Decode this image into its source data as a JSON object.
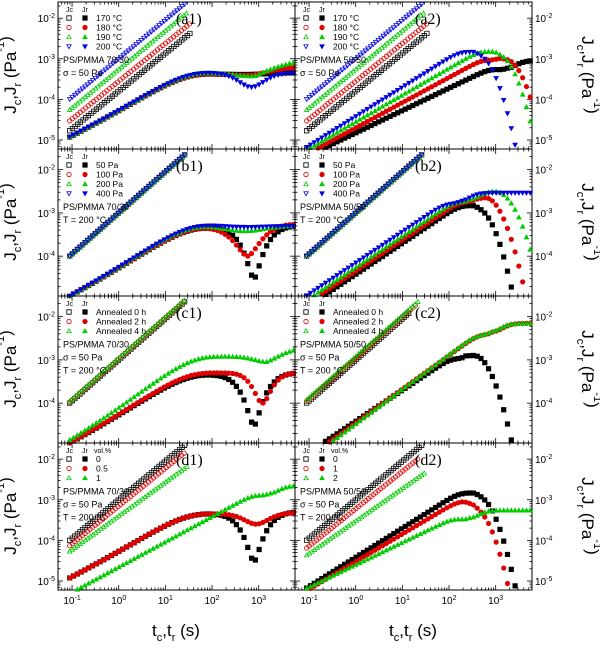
{
  "figure": {
    "y_axis_label": "J_c,J_r (Pa^-1)",
    "x_axis_label": "t_c,t_r (s)"
  },
  "chart_data": [
    {
      "type": "scatter",
      "panel": "(a1)",
      "xscale": "log",
      "yscale": "log",
      "xlim": [
        0.05,
        6000
      ],
      "ylim": [
        6e-06,
        0.025
      ],
      "annotation": [
        "PS/PMMA 70/30",
        "σ = 50 Pa"
      ],
      "legend_headers": [
        "J_c",
        "J_r"
      ],
      "series": [
        {
          "name": "170 °C",
          "color": "#000000",
          "marker": "square",
          "jc": {
            "a": 0.00016,
            "b": 0.93,
            "cap": 0.0042
          },
          "jr": {
            "s": 0.00042,
            "d": 1e-05,
            "tm": 600,
            "w": 0.6,
            "tail": 0.00045
          }
        },
        {
          "name": "180 °C",
          "color": "#e00000",
          "marker": "circle",
          "jc": {
            "a": 0.00028,
            "b": 0.93,
            "cap": 0.0072
          },
          "jr": {
            "s": 0.00042,
            "d": 3e-05,
            "tm": 700,
            "w": 0.6,
            "tail": 0.0006
          }
        },
        {
          "name": "190 °C",
          "color": "#00cc00",
          "marker": "triangle",
          "jc": {
            "a": 0.00055,
            "b": 0.95,
            "cap": 0.0132
          },
          "jr": {
            "s": 0.00045,
            "d": 8e-05,
            "tm": 800,
            "w": 0.6,
            "tail": 0.0008
          }
        },
        {
          "name": "200 °C",
          "color": "#0000e0",
          "marker": "tridown",
          "jc": {
            "a": 0.001,
            "b": 0.95,
            "cap": 0.022
          },
          "jr": {
            "s": 0.00045,
            "d": 0.00025,
            "tm": 700,
            "w": 0.45,
            "tail": 0.00045
          }
        }
      ]
    },
    {
      "type": "scatter",
      "panel": "(a2)",
      "xscale": "log",
      "yscale": "log",
      "xlim": [
        0.05,
        6000
      ],
      "ylim": [
        6e-06,
        0.025
      ],
      "annotation": [
        "PS/PMMA 50/50",
        "σ = 50 Pa"
      ],
      "legend_headers": [
        "J_c",
        "J_r"
      ],
      "series": [
        {
          "name": "170 °C",
          "color": "#000000",
          "marker": "square",
          "jc": {
            "a": 0.00016,
            "b": 0.93,
            "cap": 0.0042
          },
          "jr": {
            "a": 1.5e-05,
            "b": 0.55,
            "cap": 0.0009,
            "rise": 1.0,
            "drop": 0
          }
        },
        {
          "name": "180 °C",
          "color": "#e00000",
          "marker": "circle",
          "jc": {
            "a": 0.00028,
            "b": 0.93,
            "cap": 0.0072
          },
          "jr": {
            "a": 2e-05,
            "b": 0.62,
            "cap": 0.0016,
            "rise": 1.0,
            "drop": 4000
          }
        },
        {
          "name": "190 °C",
          "color": "#00cc00",
          "marker": "triangle",
          "jc": {
            "a": 0.00055,
            "b": 0.95,
            "cap": 0.0132
          },
          "jr": {
            "a": 2.8e-05,
            "b": 0.66,
            "cap": 0.0026,
            "rise": 1.0,
            "drop": 2500
          }
        },
        {
          "name": "200 °C",
          "color": "#0000e0",
          "marker": "tridown",
          "jc": {
            "a": 0.001,
            "b": 0.95,
            "cap": 0.022
          },
          "jr": {
            "a": 3.8e-05,
            "b": 0.72,
            "cap": 0.0026,
            "rise": 1.0,
            "drop": 900
          }
        }
      ]
    },
    {
      "type": "scatter",
      "panel": "(b1)",
      "xscale": "log",
      "yscale": "log",
      "xlim": [
        0.05,
        6000
      ],
      "ylim": [
        1.2e-05,
        0.03
      ],
      "annotation": [
        "PS/PMMA 70/30",
        "T = 200 °C"
      ],
      "legend_headers": [
        "J_c",
        "J_r"
      ],
      "series": [
        {
          "name": "50 Pa",
          "color": "#000000",
          "marker": "square",
          "jc": {
            "a": 0.001,
            "b": 0.95,
            "cap": 0.022
          },
          "jr": {
            "s": 0.00045,
            "d": 0.00042,
            "tm": 800,
            "w": 0.45,
            "tail": 0.0005
          }
        },
        {
          "name": "100 Pa",
          "color": "#e00000",
          "marker": "circle",
          "jc": {
            "a": 0.001,
            "b": 0.95,
            "cap": 0.022
          },
          "jr": {
            "s": 0.00045,
            "d": 0.00035,
            "tm": 600,
            "w": 0.5,
            "tail": 0.00055
          }
        },
        {
          "name": "200 Pa",
          "color": "#00cc00",
          "marker": "triangle",
          "jc": {
            "a": 0.001,
            "b": 0.95,
            "cap": 0.022
          },
          "jr": {
            "s": 0.0005,
            "d": 0.00012,
            "tm": 500,
            "w": 0.6,
            "tail": 0.0005
          }
        },
        {
          "name": "400 Pa",
          "color": "#0000e0",
          "marker": "tridown",
          "jc": {
            "a": 0.001,
            "b": 0.95,
            "cap": 0.022
          },
          "jr": {
            "s": 0.00052,
            "d": 5e-05,
            "tm": 500,
            "w": 0.6,
            "tail": 0.0005
          }
        }
      ]
    },
    {
      "type": "scatter",
      "panel": "(b2)",
      "xscale": "log",
      "yscale": "log",
      "xlim": [
        0.05,
        6000
      ],
      "ylim": [
        1.2e-05,
        0.03
      ],
      "annotation": [
        "PS/PMMA 50/50",
        "T = 200 °C"
      ],
      "legend_headers": [
        "J_c",
        "J_r"
      ],
      "series": [
        {
          "name": "50 Pa",
          "color": "#000000",
          "marker": "square",
          "jc": {
            "a": 0.001,
            "b": 0.95,
            "cap": 0.022
          },
          "jr": {
            "a": 3.8e-05,
            "b": 0.72,
            "cap": 0.0026,
            "rise": 1.0,
            "drop": 900
          }
        },
        {
          "name": "100 Pa",
          "color": "#e00000",
          "marker": "circle",
          "jc": {
            "a": 0.001,
            "b": 0.95,
            "cap": 0.022
          },
          "jr": {
            "a": 4.5e-05,
            "b": 0.72,
            "cap": 0.0032,
            "rise": 1.0,
            "drop": 1600
          }
        },
        {
          "name": "200 Pa",
          "color": "#00cc00",
          "marker": "triangle",
          "jc": {
            "a": 0.001,
            "b": 0.95,
            "cap": 0.022
          },
          "jr": {
            "a": 5.5e-05,
            "b": 0.72,
            "cap": 0.0032,
            "rise": 1.0,
            "drop": 3500
          }
        },
        {
          "name": "400 Pa",
          "color": "#0000e0",
          "marker": "tridown",
          "jc": {
            "a": 0.001,
            "b": 0.95,
            "cap": 0.022
          },
          "jr": {
            "a": 7e-05,
            "b": 0.72,
            "cap": 0.0029,
            "rise": 1.0,
            "drop": 0
          }
        }
      ]
    },
    {
      "type": "scatter",
      "panel": "(c1)",
      "xscale": "log",
      "yscale": "log",
      "xlim": [
        0.05,
        6000
      ],
      "ylim": [
        1.2e-05,
        0.03
      ],
      "annotation": [
        "PS/PMMA 70/30",
        "σ = 50 Pa",
        "T = 200 °C"
      ],
      "legend_headers": [
        "J_c",
        "J_r"
      ],
      "series": [
        {
          "name": "Annealed 0 h",
          "color": "#000000",
          "marker": "square",
          "jc": {
            "a": 0.001,
            "b": 0.95,
            "cap": 0.022
          },
          "jr": {
            "s": 0.00045,
            "d": 0.00042,
            "tm": 800,
            "w": 0.45,
            "tail": 0.0005
          }
        },
        {
          "name": "Annealed 2 h",
          "color": "#e00000",
          "marker": "circle",
          "jc": {
            "a": 0.00105,
            "b": 0.95,
            "cap": 0.022
          },
          "jr": {
            "s": 0.0005,
            "d": 0.0004,
            "tm": 1200,
            "w": 0.35,
            "tail": 0.0005
          }
        },
        {
          "name": "Annealed 4 h",
          "color": "#00cc00",
          "marker": "triangle",
          "jc": {
            "a": 0.0011,
            "b": 0.95,
            "cap": 0.024
          },
          "jr": {
            "s": 0.0012,
            "d": 0.0003,
            "tm": 1500,
            "w": 0.4,
            "tail": 0.0019
          }
        }
      ]
    },
    {
      "type": "scatter",
      "panel": "(c2)",
      "xscale": "log",
      "yscale": "log",
      "xlim": [
        0.05,
        6000
      ],
      "ylim": [
        1.2e-05,
        0.03
      ],
      "annotation": [
        "PS/PMMA 50/50",
        "σ = 50 Pa",
        "T = 200 °C"
      ],
      "legend_headers": [
        "J_c",
        "J_r"
      ],
      "series": [
        {
          "name": "Annealed 0 h",
          "color": "#000000",
          "marker": "square",
          "jc": {
            "a": 0.001,
            "b": 0.95,
            "cap": 0.012
          },
          "jr": {
            "a": 3.8e-05,
            "b": 0.72,
            "cap": 0.0019,
            "rise": 1.0,
            "drop": 900
          }
        },
        {
          "name": "Annealed 2 h",
          "color": "#e00000",
          "marker": "circle",
          "jc": {
            "a": 0.0011,
            "b": 0.95,
            "cap": 0.018
          },
          "jr": {
            "a": 3.5e-05,
            "b": 0.78,
            "cap": 0.007,
            "rise": 1.0,
            "drop": 0
          }
        },
        {
          "name": "Annealed 4 h",
          "color": "#00cc00",
          "marker": "triangle",
          "jc": {
            "a": 0.0012,
            "b": 0.95,
            "cap": 0.022
          },
          "jr": {
            "a": 3.3e-05,
            "b": 0.8,
            "cap": 0.007,
            "rise": 1.0,
            "drop": 0
          }
        }
      ]
    },
    {
      "type": "scatter",
      "panel": "(d1)",
      "xscale": "log",
      "yscale": "log",
      "xlim": [
        0.05,
        6000
      ],
      "ylim": [
        6e-06,
        0.025
      ],
      "annotation": [
        "PS/PMMA 70/30",
        "σ = 50 Pa",
        "T = 200 °C"
      ],
      "legend_headers": [
        "J_c",
        "J_r",
        "vol.%"
      ],
      "series": [
        {
          "name": "0",
          "color": "#000000",
          "marker": "square",
          "jc": {
            "a": 0.001,
            "b": 0.95,
            "cap": 0.022
          },
          "jr": {
            "s": 0.00045,
            "d": 0.00042,
            "tm": 800,
            "w": 0.45,
            "tail": 0.0005
          }
        },
        {
          "name": "0.5",
          "color": "#e00000",
          "marker": "circle",
          "jc": {
            "a": 0.0007,
            "b": 0.93,
            "cap": 0.014
          },
          "jr": {
            "s": 0.00045,
            "d": 0.0002,
            "tm": 900,
            "w": 0.4,
            "tail": 0.00048
          }
        },
        {
          "name": "1",
          "color": "#00cc00",
          "marker": "triangle",
          "jc": {
            "a": 0.0004,
            "b": 0.83,
            "cap": 0.0065
          },
          "jr": {
            "a": 2.2e-05,
            "b": 0.62,
            "cap": 0.0022,
            "rise": 1.0,
            "drop": 0
          }
        }
      ]
    },
    {
      "type": "scatter",
      "panel": "(d2)",
      "xscale": "log",
      "yscale": "log",
      "xlim": [
        0.05,
        6000
      ],
      "ylim": [
        6e-06,
        0.025
      ],
      "annotation": [
        "PS/PMMA 50/50",
        "σ = 50 Pa",
        "T = 200 °C"
      ],
      "legend_headers": [
        "J_c",
        "J_r",
        "vol.%"
      ],
      "series": [
        {
          "name": "0",
          "color": "#000000",
          "marker": "square",
          "jc": {
            "a": 0.001,
            "b": 0.95,
            "cap": 0.022
          },
          "jr": {
            "a": 3.8e-05,
            "b": 0.72,
            "cap": 0.0026,
            "rise": 1.0,
            "drop": 900
          }
        },
        {
          "name": "1",
          "color": "#e00000",
          "marker": "circle",
          "jc": {
            "a": 0.0006,
            "b": 0.92,
            "cap": 0.01
          },
          "jr": {
            "a": 3e-05,
            "b": 0.68,
            "cap": 0.0016,
            "rise": 1.0,
            "drop": 700
          }
        },
        {
          "name": "2",
          "color": "#00cc00",
          "marker": "triangle",
          "jc": {
            "a": 0.0003,
            "b": 0.8,
            "cap": 0.0045
          },
          "jr": {
            "a": 2.5e-05,
            "b": 0.55,
            "cap": 0.00055,
            "rise": 1.0,
            "drop": 0
          }
        }
      ]
    }
  ]
}
